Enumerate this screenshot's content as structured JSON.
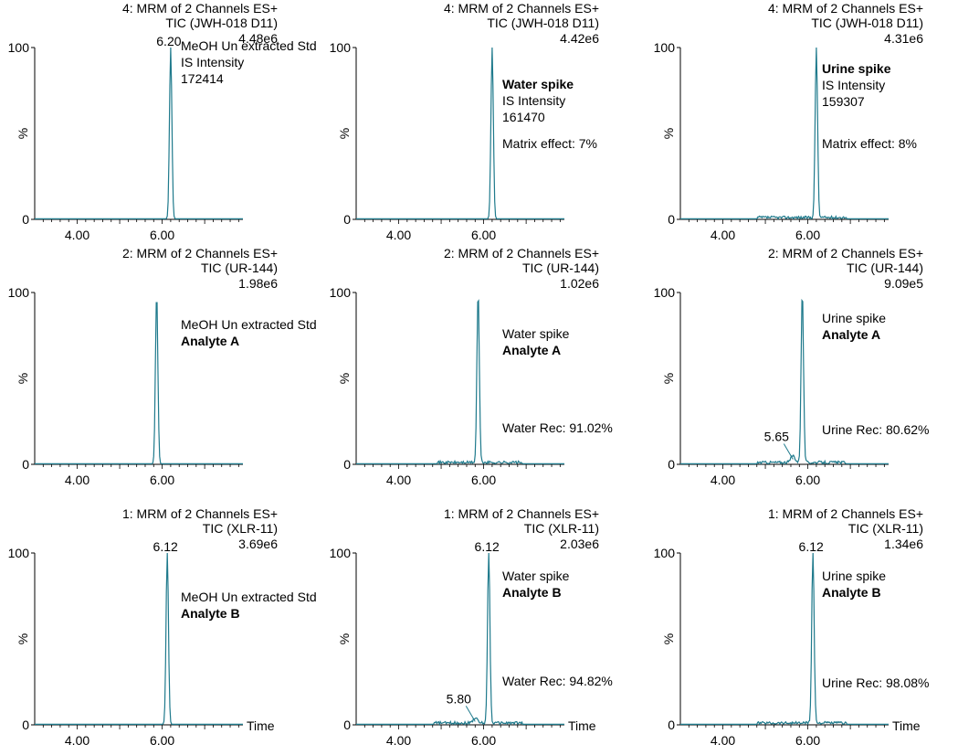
{
  "colors": {
    "trace": "#1f7a8c",
    "axis": "#000000"
  },
  "common": {
    "y_axis_label": "%",
    "x_axis_title": "Time"
  },
  "panels": [
    {
      "id": "r1c1",
      "header_line1": "4: MRM of 2 Channels ES+",
      "header_line2": "TIC (JWH-018 D11)",
      "intensity": "4.48e6",
      "annotation": [
        {
          "text": "MeOH Un extracted Std",
          "bold": false
        },
        {
          "text": "IS Intensity",
          "bold": false
        },
        {
          "text": "172414",
          "bold": false
        }
      ],
      "extra_note": "",
      "show_x_title": false
    },
    {
      "id": "r1c2",
      "header_line1": "4: MRM of 2 Channels ES+",
      "header_line2": "TIC (JWH-018 D11)",
      "intensity": "4.42e6",
      "annotation": [
        {
          "text": "Water spike",
          "bold": true
        },
        {
          "text": "IS Intensity",
          "bold": false
        },
        {
          "text": "161470",
          "bold": false
        }
      ],
      "extra_note": "Matrix effect: 7%",
      "show_x_title": false
    },
    {
      "id": "r1c3",
      "header_line1": "4: MRM of 2 Channels ES+",
      "header_line2": "TIC (JWH-018 D11)",
      "intensity": "4.31e6",
      "annotation": [
        {
          "text": "Urine spike",
          "bold": true
        },
        {
          "text": "IS Intensity",
          "bold": false
        },
        {
          "text": "159307",
          "bold": false
        }
      ],
      "extra_note": "Matrix effect: 8%",
      "show_x_title": false
    },
    {
      "id": "r2c1",
      "header_line1": "2: MRM of 2 Channels ES+",
      "header_line2": "TIC (UR-144)",
      "intensity": "1.98e6",
      "annotation": [
        {
          "text": "MeOH Un extracted Std",
          "bold": false
        },
        {
          "text": "Analyte A",
          "bold": true
        }
      ],
      "extra_note": "",
      "show_x_title": false
    },
    {
      "id": "r2c2",
      "header_line1": "2: MRM of 2 Channels ES+",
      "header_line2": "TIC (UR-144)",
      "intensity": "1.02e6",
      "annotation": [
        {
          "text": "Water spike",
          "bold": false
        },
        {
          "text": "Analyte A",
          "bold": true
        }
      ],
      "extra_note": "Water Rec: 91.02%",
      "show_x_title": false
    },
    {
      "id": "r2c3",
      "header_line1": "2: MRM of 2 Channels ES+",
      "header_line2": "TIC (UR-144)",
      "intensity": "9.09e5",
      "annotation": [
        {
          "text": "Urine spike",
          "bold": false
        },
        {
          "text": "Analyte A",
          "bold": true
        }
      ],
      "extra_note": "Urine Rec: 80.62%",
      "show_x_title": false
    },
    {
      "id": "r3c1",
      "header_line1": "1: MRM of 2 Channels ES+",
      "header_line2": "TIC (XLR-11)",
      "intensity": "3.69e6",
      "annotation": [
        {
          "text": "MeOH Un extracted Std",
          "bold": false
        },
        {
          "text": "Analyte B",
          "bold": true
        }
      ],
      "extra_note": "",
      "show_x_title": true
    },
    {
      "id": "r3c2",
      "header_line1": "1: MRM of 2 Channels ES+",
      "header_line2": "TIC (XLR-11)",
      "intensity": "2.03e6",
      "annotation": [
        {
          "text": "Water spike",
          "bold": false
        },
        {
          "text": "Analyte B",
          "bold": true
        }
      ],
      "extra_note": "Water Rec: 94.82%",
      "show_x_title": true
    },
    {
      "id": "r3c3",
      "header_line1": "1: MRM of 2 Channels ES+",
      "header_line2": "TIC (XLR-11)",
      "intensity": "1.34e6",
      "annotation": [
        {
          "text": "Urine spike",
          "bold": false
        },
        {
          "text": "Analyte B",
          "bold": true
        }
      ],
      "extra_note": "Urine Rec: 98.08%",
      "show_x_title": true
    }
  ],
  "chart_data": [
    {
      "type": "line",
      "panel": "r1c1",
      "xlim": [
        3.0,
        7.9
      ],
      "ylim": [
        0,
        100
      ],
      "x_ticks": [
        "4.00",
        "6.00"
      ],
      "y_ticks": [
        "0",
        "100"
      ],
      "peaks": [
        {
          "x": 6.2,
          "height": 100,
          "label": "6.20"
        }
      ],
      "baseline_noise": false
    },
    {
      "type": "line",
      "panel": "r1c2",
      "xlim": [
        3.0,
        7.9
      ],
      "ylim": [
        0,
        100
      ],
      "x_ticks": [
        "4.00",
        "6.00"
      ],
      "y_ticks": [
        "0",
        "100"
      ],
      "peaks": [
        {
          "x": 6.2,
          "height": 100,
          "label": ""
        }
      ],
      "baseline_noise": false
    },
    {
      "type": "line",
      "panel": "r1c3",
      "xlim": [
        3.0,
        7.9
      ],
      "ylim": [
        0,
        100
      ],
      "x_ticks": [
        "4.00",
        "6.00"
      ],
      "y_ticks": [
        "0",
        "100"
      ],
      "peaks": [
        {
          "x": 6.2,
          "height": 100,
          "label": ""
        }
      ],
      "baseline_noise": true
    },
    {
      "type": "line",
      "panel": "r2c1",
      "xlim": [
        3.0,
        7.9
      ],
      "ylim": [
        0,
        100
      ],
      "x_ticks": [
        "4.00",
        "6.00"
      ],
      "y_ticks": [
        "0",
        "100"
      ],
      "peaks": [
        {
          "x": 5.87,
          "height": 100,
          "label": ""
        }
      ],
      "baseline_noise": false
    },
    {
      "type": "line",
      "panel": "r2c2",
      "xlim": [
        3.0,
        7.9
      ],
      "ylim": [
        0,
        100
      ],
      "x_ticks": [
        "4.00",
        "6.00"
      ],
      "y_ticks": [
        "0",
        "100"
      ],
      "peaks": [
        {
          "x": 5.87,
          "height": 100,
          "label": ""
        }
      ],
      "baseline_noise": true
    },
    {
      "type": "line",
      "panel": "r2c3",
      "xlim": [
        3.0,
        7.9
      ],
      "ylim": [
        0,
        100
      ],
      "x_ticks": [
        "4.00",
        "6.00"
      ],
      "y_ticks": [
        "0",
        "100"
      ],
      "peaks": [
        {
          "x": 5.65,
          "height": 4,
          "label": "5.65"
        },
        {
          "x": 5.87,
          "height": 100,
          "label": ""
        }
      ],
      "baseline_noise": true
    },
    {
      "type": "line",
      "panel": "r3c1",
      "xlim": [
        3.0,
        7.9
      ],
      "ylim": [
        0,
        100
      ],
      "x_ticks": [
        "4.00",
        "6.00"
      ],
      "y_ticks": [
        "0",
        "100"
      ],
      "peaks": [
        {
          "x": 6.12,
          "height": 100,
          "label": "6.12"
        }
      ],
      "baseline_noise": false
    },
    {
      "type": "line",
      "panel": "r3c2",
      "xlim": [
        3.0,
        7.9
      ],
      "ylim": [
        0,
        100
      ],
      "x_ticks": [
        "4.00",
        "6.00"
      ],
      "y_ticks": [
        "0",
        "100"
      ],
      "peaks": [
        {
          "x": 5.8,
          "height": 3,
          "label": "5.80"
        },
        {
          "x": 6.12,
          "height": 100,
          "label": "6.12"
        }
      ],
      "baseline_noise": true
    },
    {
      "type": "line",
      "panel": "r3c3",
      "xlim": [
        3.0,
        7.9
      ],
      "ylim": [
        0,
        100
      ],
      "x_ticks": [
        "4.00",
        "6.00"
      ],
      "y_ticks": [
        "0",
        "100"
      ],
      "peaks": [
        {
          "x": 6.12,
          "height": 100,
          "label": "6.12"
        }
      ],
      "baseline_noise": true
    }
  ]
}
